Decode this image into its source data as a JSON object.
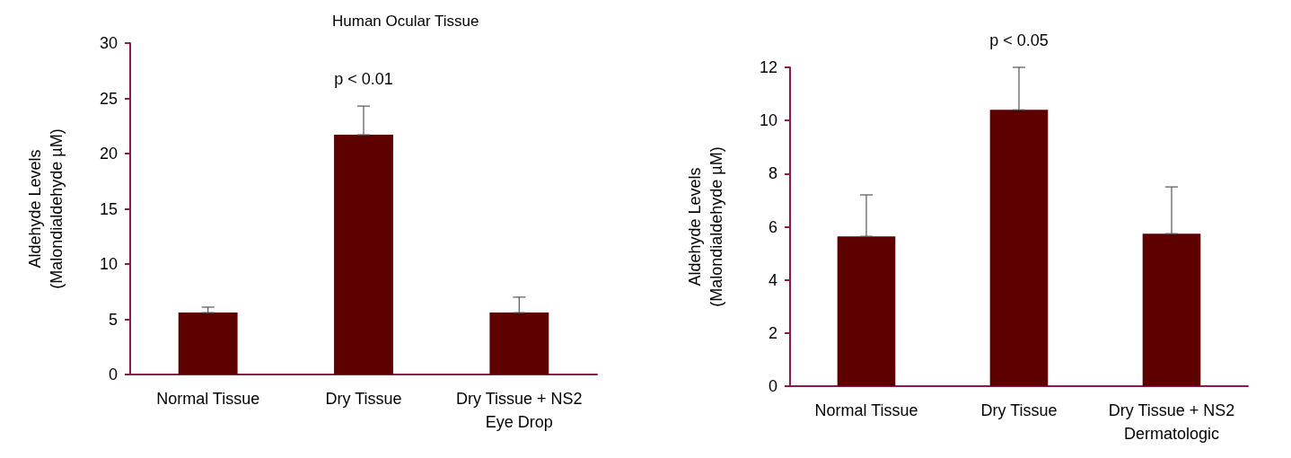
{
  "chart_data": [
    {
      "type": "bar",
      "title": "Human Ocular Tissue",
      "ylabel": "Aldehyde Levels\n(Malondialdehyde µM)",
      "categories": [
        "Normal Tissue",
        "Dry Tissue",
        "Dry Tissue + NS2\nEye Drop"
      ],
      "values": [
        5.6,
        21.7,
        5.6
      ],
      "errors": [
        [
          5.6,
          6.1
        ],
        [
          21.7,
          24.3
        ],
        [
          5.6,
          7.0
        ]
      ],
      "color": "#5c0000",
      "ylim": [
        0,
        30
      ],
      "yticks": [
        0,
        5,
        10,
        15,
        20,
        25,
        30
      ],
      "grid": false,
      "annotations": [
        "p < 0.01"
      ]
    },
    {
      "type": "bar",
      "ylabel": "Aldehyde Levels\n(Malondialdehyde µM)",
      "categories": [
        "Normal Tissue",
        "Dry Tissue",
        "Dry Tissue + NS2\nDermatologic"
      ],
      "values": [
        5.64,
        10.4,
        5.74
      ],
      "errors": [
        [
          5.64,
          7.2
        ],
        [
          10.4,
          12.0
        ],
        [
          5.74,
          7.5
        ]
      ],
      "color": "#5c0000",
      "ylim": [
        0,
        12
      ],
      "yticks": [
        0,
        2,
        4,
        6,
        8,
        10,
        12
      ],
      "grid": false,
      "annotations": [
        "p < 0.05"
      ]
    }
  ]
}
